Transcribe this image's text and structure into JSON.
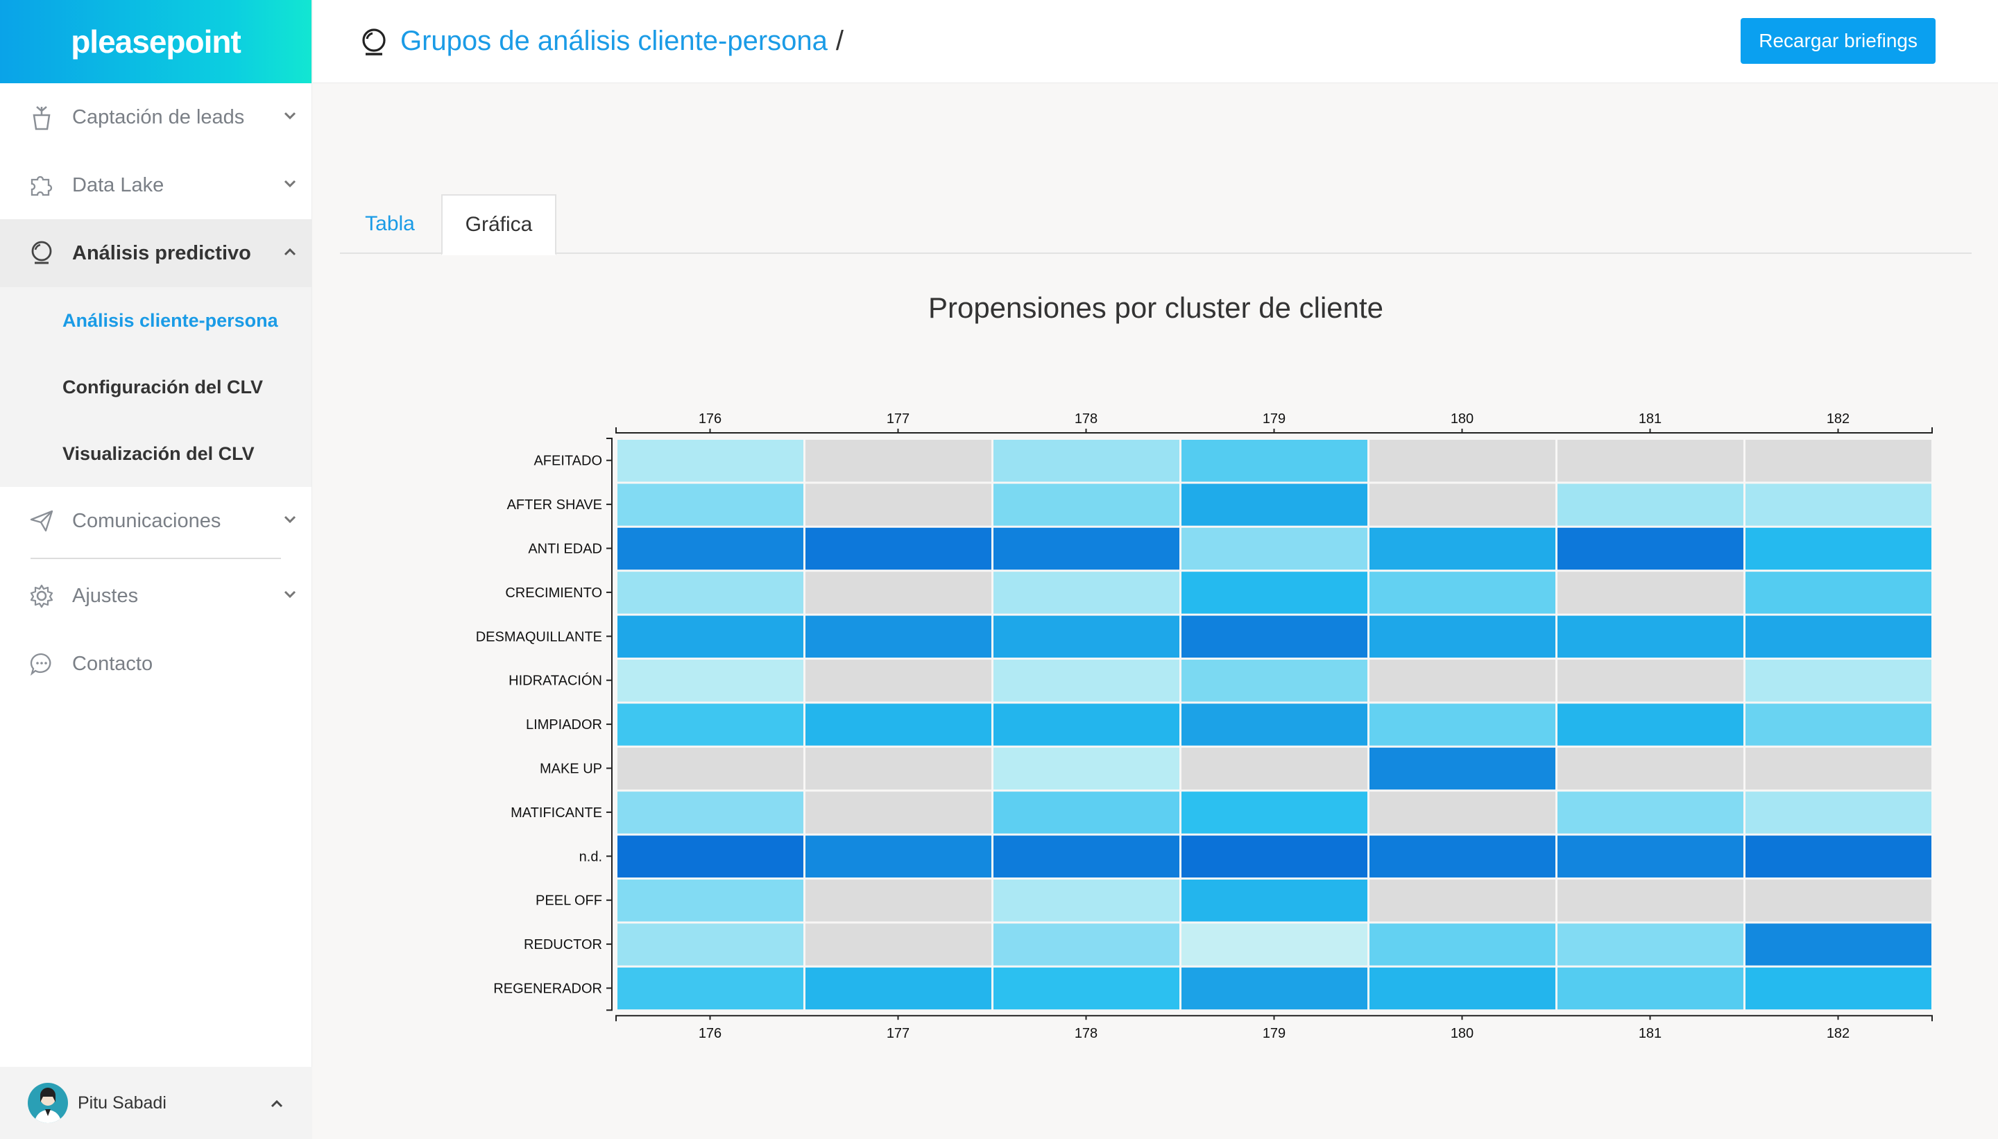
{
  "app": {
    "logo_text": "pleasepoint"
  },
  "sidebar": {
    "items": [
      {
        "label": "Captación de leads",
        "icon": "plant-pot-icon",
        "expanded": false
      },
      {
        "label": "Data Lake",
        "icon": "puzzle-icon",
        "expanded": false
      },
      {
        "label": "Análisis predictivo",
        "icon": "crystal-ball-icon",
        "expanded": true,
        "children": [
          {
            "label": "Análisis cliente-persona",
            "current": true
          },
          {
            "label": "Configuración del CLV",
            "current": false
          },
          {
            "label": "Visualización del CLV",
            "current": false
          }
        ]
      },
      {
        "label": "Comunicaciones",
        "icon": "paper-plane-icon",
        "expanded": false
      },
      {
        "label": "Ajustes",
        "icon": "gear-icon",
        "expanded": false
      },
      {
        "label": "Contacto",
        "icon": "chat-bubble-icon"
      }
    ],
    "user": {
      "name": "Pitu Sabadi"
    }
  },
  "header": {
    "title": "Grupos de análisis cliente-persona",
    "separator": "/",
    "reload_label": "Recargar briefings"
  },
  "tabs": [
    {
      "label": "Tabla",
      "active": false
    },
    {
      "label": "Gráfica",
      "active": true
    }
  ],
  "chart_data": {
    "type": "heatmap",
    "title": "Propensiones por cluster de cliente",
    "x": [
      "176",
      "177",
      "178",
      "179",
      "180",
      "181",
      "182"
    ],
    "y": [
      "AFEITADO",
      "AFTER SHAVE",
      "ANTI EDAD",
      "CRECIMIENTO",
      "DESMAQUILLANTE",
      "HIDRATACIÓN",
      "LIMPIADOR",
      "MAKE UP",
      "MATIFICANTE",
      "n.d.",
      "PEEL OFF",
      "REDUCTOR",
      "REGENERADOR"
    ],
    "values": [
      [
        0.15,
        null,
        0.22,
        0.45,
        null,
        null,
        null
      ],
      [
        0.3,
        null,
        0.32,
        0.7,
        null,
        0.2,
        0.18
      ],
      [
        0.9,
        0.97,
        0.92,
        0.28,
        0.7,
        0.97,
        0.62
      ],
      [
        0.22,
        null,
        0.18,
        0.62,
        0.4,
        null,
        0.45
      ],
      [
        0.72,
        0.82,
        0.72,
        0.92,
        0.72,
        0.7,
        0.72
      ],
      [
        0.12,
        null,
        0.14,
        0.32,
        null,
        null,
        0.15
      ],
      [
        0.52,
        0.65,
        0.65,
        0.75,
        0.4,
        0.65,
        0.38
      ],
      [
        null,
        null,
        0.12,
        null,
        0.88,
        null,
        null
      ],
      [
        0.28,
        null,
        0.42,
        0.58,
        null,
        0.3,
        0.18
      ],
      [
        1.0,
        0.88,
        0.95,
        1.0,
        0.95,
        0.9,
        0.98
      ],
      [
        0.3,
        null,
        0.16,
        0.65,
        null,
        null,
        null
      ],
      [
        0.22,
        null,
        0.28,
        0.08,
        0.4,
        0.3,
        0.88
      ],
      [
        0.52,
        0.65,
        0.58,
        0.75,
        0.65,
        0.45,
        0.62
      ]
    ],
    "colors": {
      "low": "#ddf7f5",
      "high": "#0b72d8",
      "missing": "#dcdcdc"
    }
  }
}
